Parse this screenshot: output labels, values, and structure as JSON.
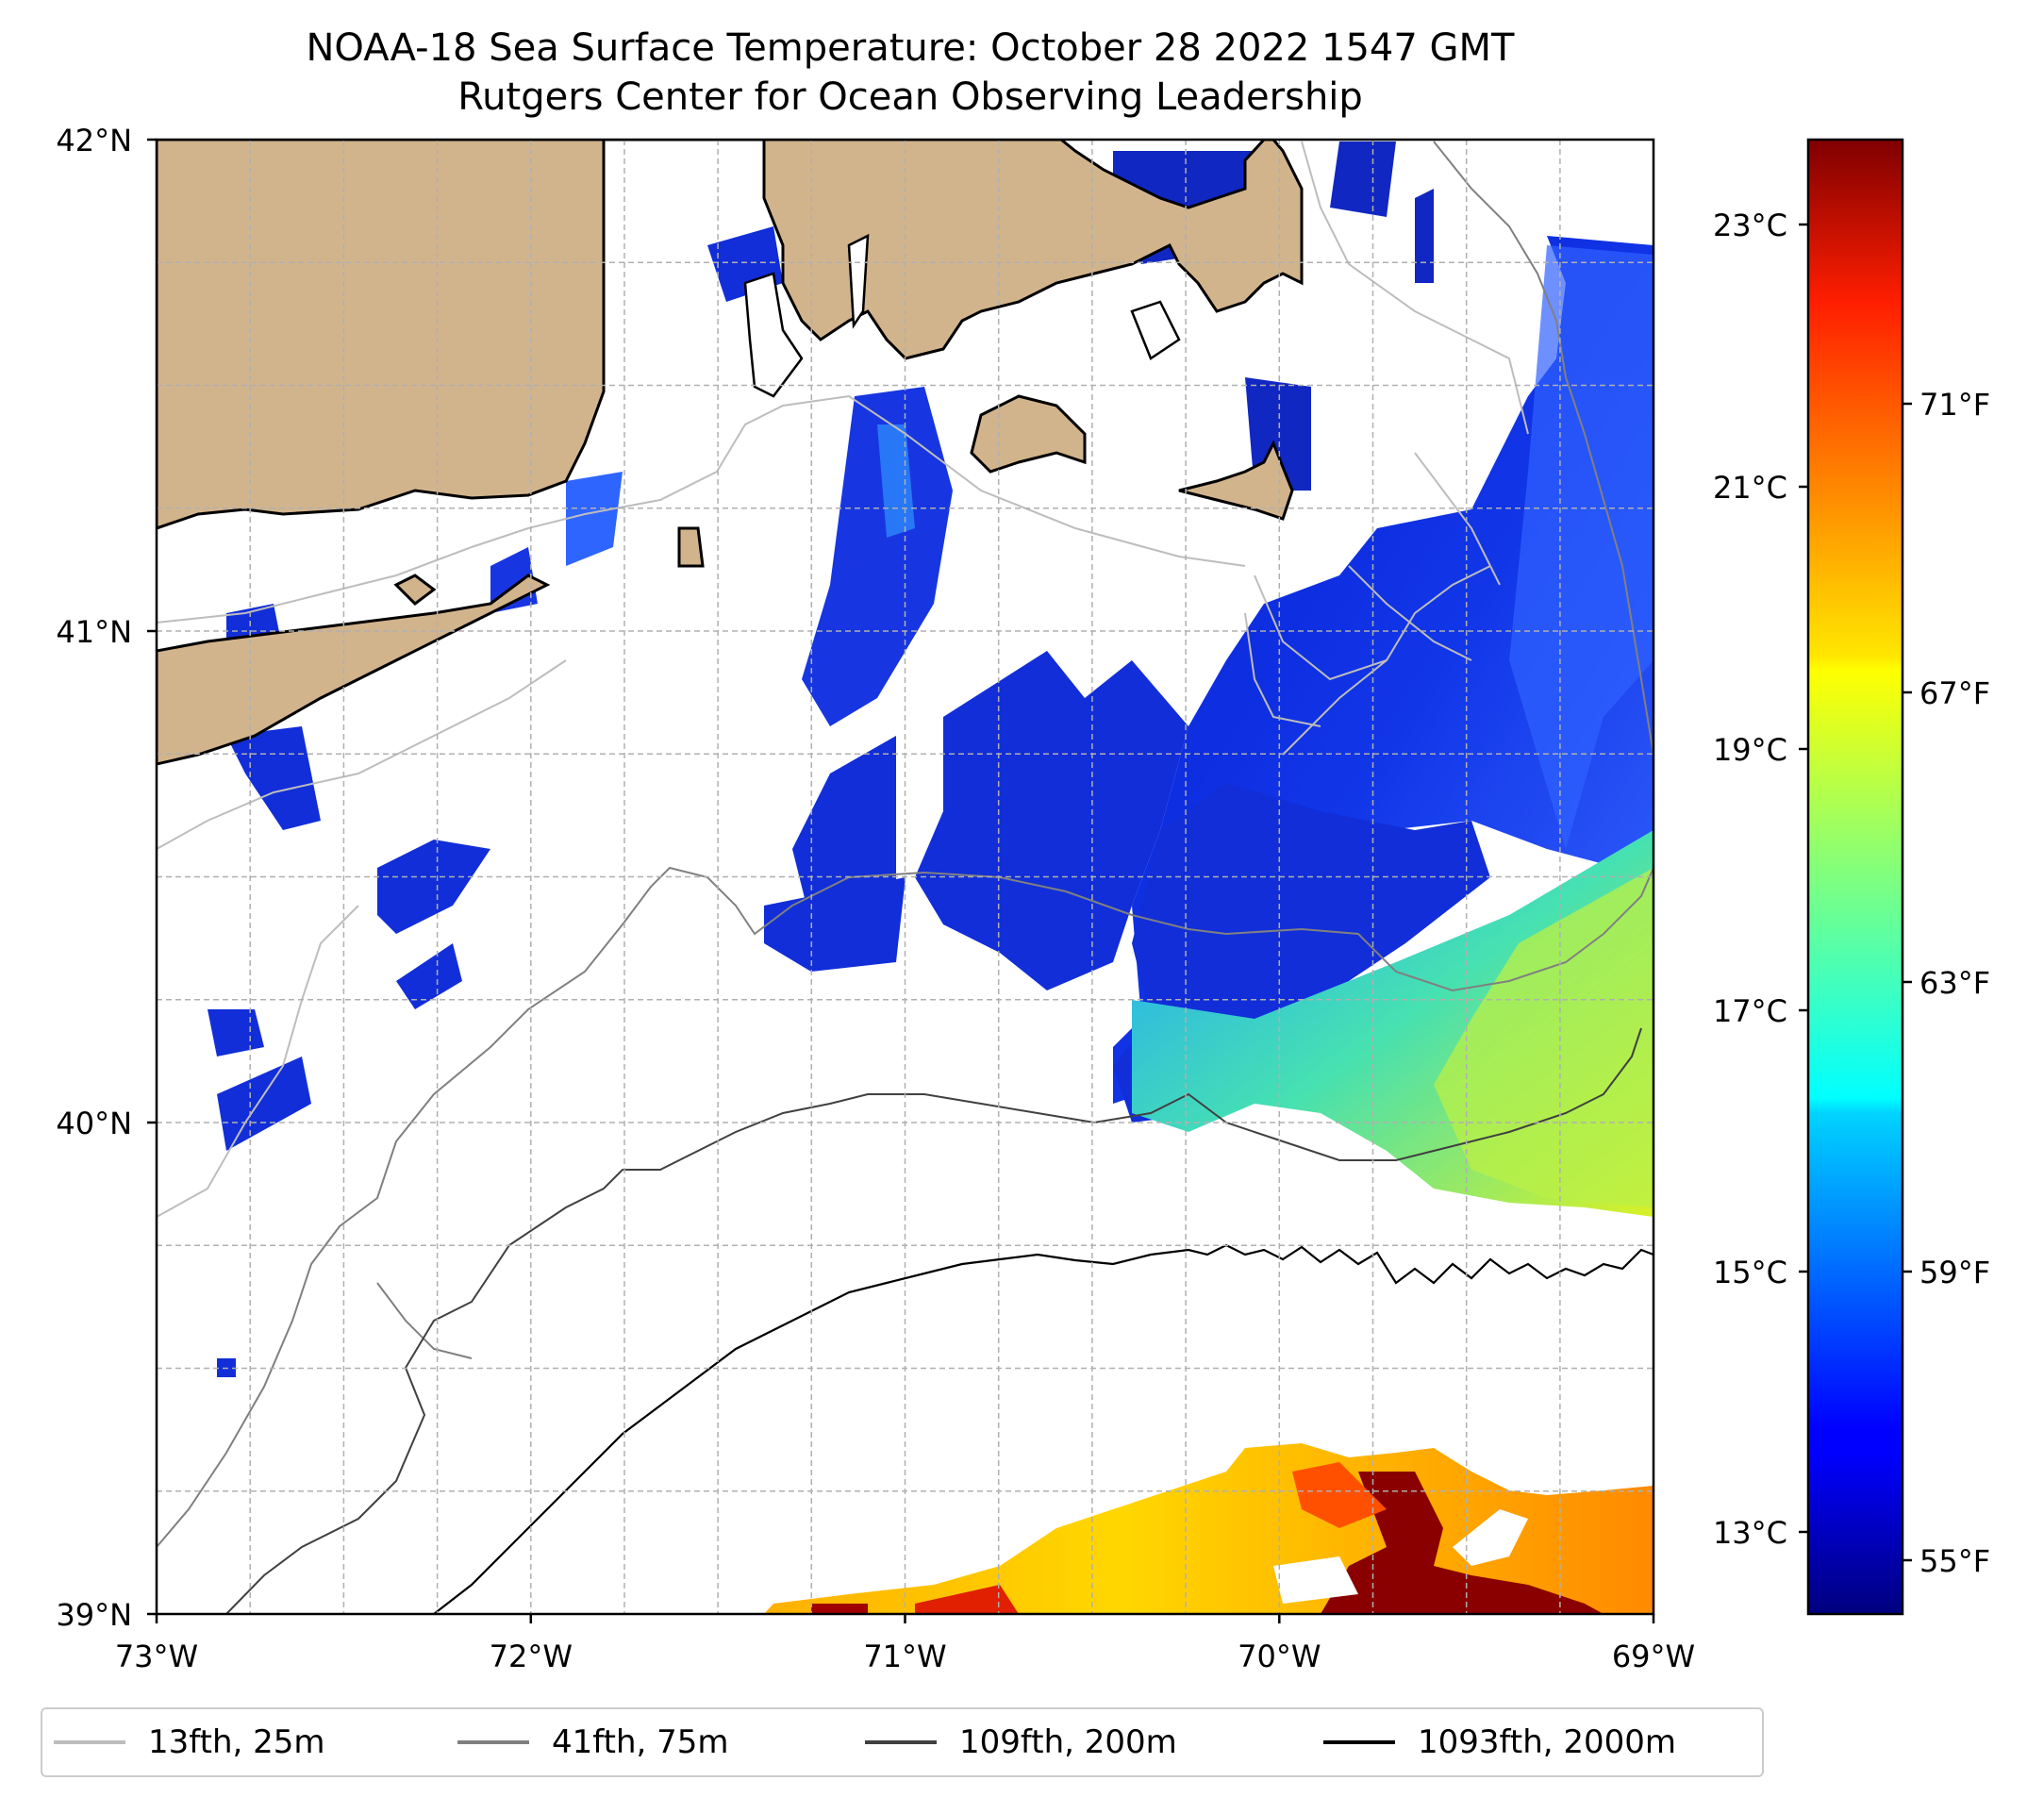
{
  "title": "NOAA-18 Sea Surface Temperature: October 28 2022 1547 GMT",
  "subtitle": "Rutgers Center for Ocean Observing Leadership",
  "axes": {
    "lat_ticks": [
      "42°N",
      "41°N",
      "40°N",
      "39°N"
    ],
    "lon_ticks": [
      "73°W",
      "72°W",
      "71°W",
      "70°W",
      "69°W"
    ]
  },
  "colorbar": {
    "celsius_ticks": [
      "23°C",
      "21°C",
      "19°C",
      "17°C",
      "15°C",
      "13°C"
    ],
    "fahrenheit_ticks": [
      "71°F",
      "67°F",
      "63°F",
      "59°F",
      "55°F"
    ],
    "colormap": "jet"
  },
  "legend": {
    "items": [
      {
        "label": "13fth, 25m",
        "color": "#bdbdbd"
      },
      {
        "label": "41fth, 75m",
        "color": "#808080"
      },
      {
        "label": "109fth, 200m",
        "color": "#404040"
      },
      {
        "label": "1093fth, 2000m",
        "color": "#000000"
      }
    ]
  },
  "colors": {
    "land": "#d2b48c",
    "coast": "#000000",
    "grid": "#b0b0b0"
  }
}
